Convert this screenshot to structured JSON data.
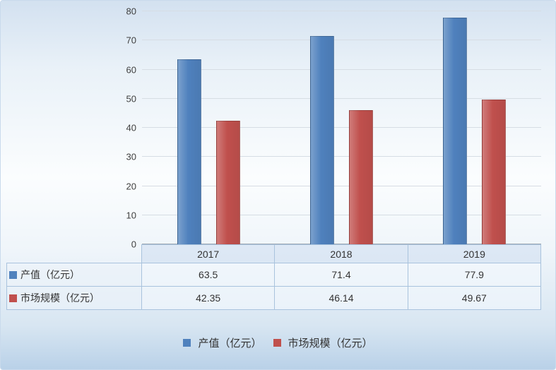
{
  "chart_data": {
    "type": "bar",
    "title": "",
    "xlabel": "",
    "ylabel": "",
    "categories": [
      "2017",
      "2018",
      "2019"
    ],
    "series": [
      {
        "name": "产值（亿元）",
        "color": "#4F81BD",
        "values": [
          63.5,
          71.4,
          77.9
        ]
      },
      {
        "name": "市场规模（亿元）",
        "color": "#C0504D",
        "values": [
          42.35,
          46.14,
          49.67
        ]
      }
    ],
    "ylim": [
      0,
      80
    ],
    "ytick_step": 10,
    "yticks": [
      0,
      10,
      20,
      30,
      40,
      50,
      60,
      70,
      80
    ],
    "grid": true,
    "legend_position": "bottom",
    "data_table": true
  },
  "colors": {
    "series1": "#4F81BD",
    "series2": "#C0504D",
    "gridline": "#d6dde4",
    "table_border": "#a9c3dd",
    "background_top": "#d3e1f0",
    "background_bottom": "#b9d1e8",
    "text": "#333333"
  }
}
